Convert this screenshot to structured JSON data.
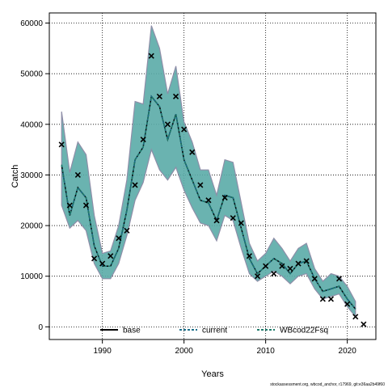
{
  "chart_data": {
    "type": "line",
    "title": "",
    "xlabel": "Years",
    "ylabel": "Catch",
    "xlim": [
      1983.5,
      2023.5
    ],
    "ylim": [
      -2500,
      62000
    ],
    "x_ticks": [
      1990,
      2000,
      2010,
      2020
    ],
    "y_ticks": [
      0,
      10000,
      20000,
      30000,
      40000,
      50000,
      60000
    ],
    "grid": true,
    "legend_position": "bottom",
    "legend": [
      {
        "name": "base",
        "style": "solid",
        "color": "#000000"
      },
      {
        "name": "current",
        "style": "dashed",
        "color": "#1b6f8a"
      },
      {
        "name": "WBcod22Fsq",
        "style": "dashed",
        "color": "#1e7a6a"
      }
    ],
    "years": [
      1985,
      1986,
      1987,
      1988,
      1989,
      1990,
      1991,
      1992,
      1993,
      1994,
      1995,
      1996,
      1997,
      1998,
      1999,
      2000,
      2001,
      2002,
      2003,
      2004,
      2005,
      2006,
      2007,
      2008,
      2009,
      2010,
      2011,
      2012,
      2013,
      2014,
      2015,
      2016,
      2017,
      2018,
      2019,
      2020,
      2021
    ],
    "band_upper": [
      42500,
      30500,
      36500,
      34000,
      22000,
      14500,
      15000,
      20000,
      29000,
      44500,
      44000,
      59500,
      55000,
      46000,
      51500,
      40500,
      36500,
      31000,
      31000,
      26000,
      33000,
      32500,
      24500,
      16500,
      13000,
      14500,
      17500,
      15500,
      13000,
      15500,
      16500,
      11500,
      9000,
      10500,
      10000,
      8000,
      5000
    ],
    "band_lower": [
      24000,
      19500,
      21000,
      19000,
      12500,
      9500,
      9500,
      12500,
      18000,
      25000,
      28500,
      35000,
      31000,
      29000,
      31500,
      27000,
      23500,
      20500,
      20000,
      17000,
      22000,
      21000,
      15500,
      10500,
      9000,
      10000,
      11000,
      10000,
      8500,
      10000,
      10500,
      7500,
      5500,
      6000,
      6500,
      4000,
      2000
    ],
    "series": [
      {
        "name": "base",
        "values": [
          32000,
          22000,
          27500,
          25500,
          16000,
          12000,
          12000,
          15500,
          23000,
          33000,
          35500,
          45500,
          43500,
          37000,
          42000,
          33000,
          29000,
          25000,
          24500,
          21000,
          26000,
          25500,
          19500,
          13500,
          10500,
          12000,
          13500,
          12500,
          10500,
          12500,
          13000,
          9500,
          7000,
          7500,
          8000,
          5500,
          3500
        ]
      },
      {
        "name": "current",
        "values": [
          32000,
          22000,
          27500,
          25500,
          16000,
          12000,
          12000,
          15500,
          23000,
          33000,
          35500,
          45500,
          43500,
          37000,
          42000,
          33000,
          29000,
          25000,
          24500,
          21000,
          26000,
          25500,
          19500,
          13500,
          10500,
          12000,
          13500,
          12500,
          10500,
          12500,
          13000,
          9500,
          7000,
          7500,
          8000,
          5500,
          3500
        ]
      },
      {
        "name": "WBcod22Fsq",
        "values": [
          32000,
          22000,
          27500,
          25500,
          16000,
          12000,
          12000,
          15500,
          23000,
          33000,
          35500,
          45500,
          43500,
          37000,
          42000,
          33000,
          29000,
          25000,
          24500,
          21000,
          26000,
          25500,
          19500,
          13500,
          10500,
          12000,
          13500,
          12500,
          10500,
          12500,
          13000,
          9500,
          7000,
          7500,
          8000,
          5500,
          3500
        ]
      }
    ],
    "observed": {
      "years": [
        1985,
        1986,
        1987,
        1988,
        1989,
        1990,
        1991,
        1992,
        1993,
        1994,
        1995,
        1996,
        1997,
        1998,
        1999,
        2000,
        2001,
        2002,
        2003,
        2004,
        2005,
        2006,
        2007,
        2008,
        2009,
        2010,
        2011,
        2012,
        2013,
        2014,
        2015,
        2016,
        2017,
        2018,
        2019,
        2020,
        2021,
        2022
      ],
      "values": [
        36000,
        24000,
        30000,
        24000,
        13500,
        12500,
        14000,
        17500,
        19000,
        28000,
        37000,
        53500,
        45500,
        40000,
        45500,
        39000,
        34500,
        28000,
        25000,
        21000,
        25500,
        21500,
        20500,
        14000,
        10000,
        12000,
        10500,
        12000,
        11500,
        12500,
        13000,
        9500,
        5500,
        5500,
        9500,
        4500,
        2000,
        500
      ]
    },
    "colors": {
      "band_fill": "#5aaba7",
      "band_edge": "#8e8ea8",
      "base": "#000000",
      "current": "#1b6f8a",
      "wbcod": "#1e7a6a",
      "observed": "#000000"
    },
    "caption": "stockassessment.org, wbcod_anchor, r17969, git:e36aa2b49f60"
  }
}
